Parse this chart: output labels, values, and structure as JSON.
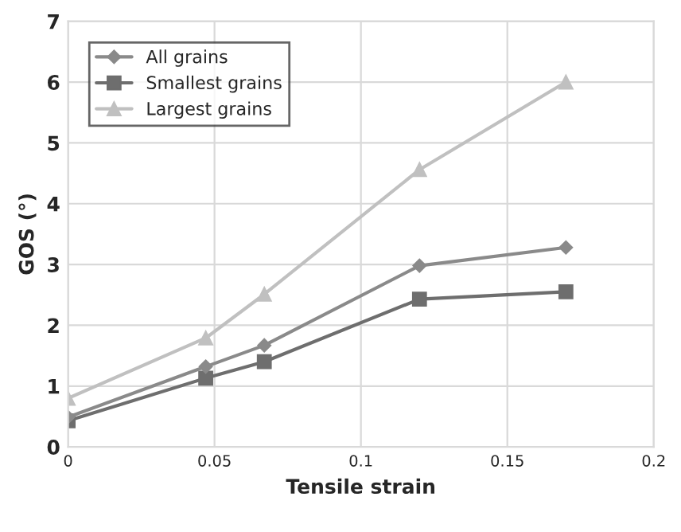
{
  "chart_data": {
    "type": "line",
    "xlabel": "Tensile strain",
    "ylabel": "GOS (°)",
    "xlim": [
      0,
      0.2
    ],
    "xticks": [
      {
        "value": 0,
        "label": "0"
      },
      0.05,
      0.1,
      0.15,
      0.2
    ],
    "ylim": [
      0,
      7
    ],
    "yticks": [
      0,
      1,
      2,
      3,
      4,
      5,
      6,
      7
    ],
    "grid": true,
    "legend": "top left",
    "series": [
      {
        "name": "All grains",
        "color": "#8a8a8a",
        "marker": "diamond",
        "x": [
          0,
          0.047,
          0.067,
          0.12,
          0.17
        ],
        "values": [
          0.49,
          1.32,
          1.67,
          2.98,
          3.28
        ]
      },
      {
        "name": "Smallest grains",
        "color": "#6e6e6e",
        "marker": "square",
        "x": [
          0,
          0.047,
          0.067,
          0.12,
          0.17
        ],
        "values": [
          0.43,
          1.13,
          1.4,
          2.43,
          2.55
        ]
      },
      {
        "name": "Largest grains",
        "color": "#c0c0c0",
        "marker": "triangle",
        "x": [
          0,
          0.047,
          0.067,
          0.12,
          0.17
        ],
        "values": [
          0.8,
          1.79,
          2.51,
          4.56,
          6.0
        ]
      }
    ]
  }
}
